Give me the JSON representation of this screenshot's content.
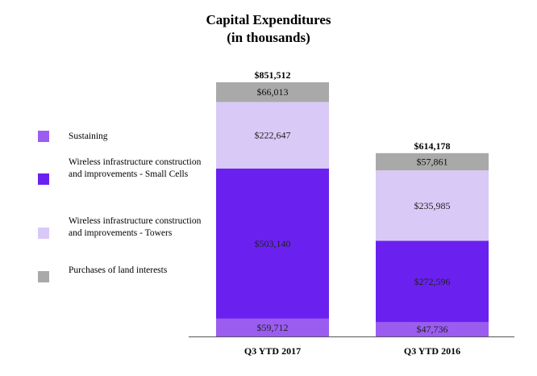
{
  "title_line1": "Capital Expenditures",
  "title_line2": "(in thousands)",
  "colors": {
    "sustaining": "#9b5cf0",
    "small_cells": "#6a21f0",
    "towers": "#d9c9f7",
    "land": "#a9a9a9"
  },
  "chart_data": {
    "type": "bar",
    "stacked": true,
    "title": "Capital Expenditures (in thousands)",
    "categories": [
      "Q3 YTD 2017",
      "Q3 YTD 2016"
    ],
    "series": [
      {
        "name": "Sustaining",
        "values": [
          59712,
          47736
        ],
        "labels": [
          "$59,712",
          "$47,736"
        ],
        "color": "#9b5cf0"
      },
      {
        "name": "Wireless infrastructure construction and improvements - Small Cells",
        "values": [
          503140,
          272596
        ],
        "labels": [
          "$503,140",
          "$272,596"
        ],
        "color": "#6a21f0"
      },
      {
        "name": "Wireless infrastructure construction and improvements - Towers",
        "values": [
          222647,
          235985
        ],
        "labels": [
          "$222,647",
          "$235,985"
        ],
        "color": "#d9c9f7"
      },
      {
        "name": "Purchases of land interests",
        "values": [
          66013,
          57861
        ],
        "labels": [
          "$66,013",
          "$57,861"
        ],
        "color": "#a9a9a9"
      }
    ],
    "totals": [
      851512,
      614178
    ],
    "total_labels": [
      "$851,512",
      "$614,178"
    ],
    "legend_position": "left",
    "grid": false
  }
}
